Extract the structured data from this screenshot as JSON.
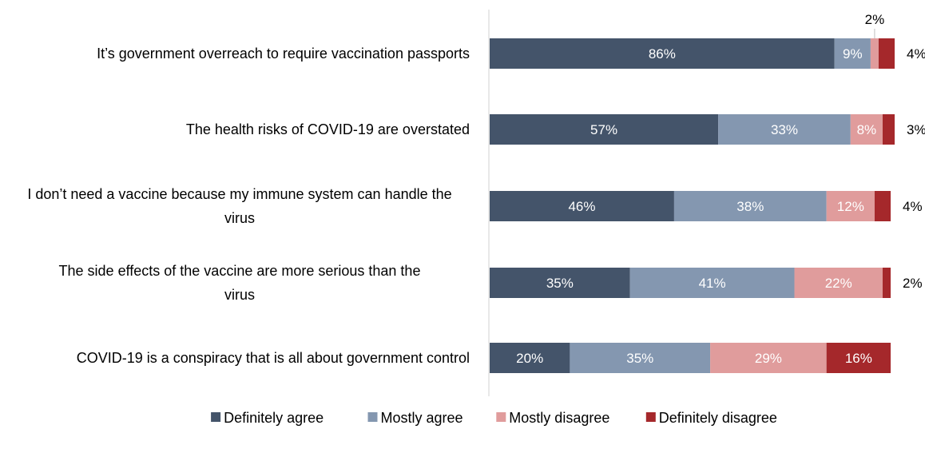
{
  "chart_data": {
    "type": "bar",
    "orientation": "horizontal",
    "stacked": true,
    "categories": [
      "It’s government overreach to require vaccination passports",
      "The health risks of COVID-19 are overstated",
      "I don’t need a vaccine because my immune system can handle the virus",
      "The side effects of the vaccine are more serious than the virus",
      "COVID-19 is a conspiracy that is all about government control"
    ],
    "series": [
      {
        "name": "Definitely agree",
        "color": "#44546A",
        "values": [
          86,
          57,
          46,
          35,
          20
        ]
      },
      {
        "name": "Mostly agree",
        "color": "#8497B0",
        "values": [
          9,
          33,
          38,
          41,
          35
        ]
      },
      {
        "name": "Mostly disagree",
        "color": "#E09C9C",
        "values": [
          2,
          8,
          12,
          22,
          29
        ]
      },
      {
        "name": "Definitely disagree",
        "color": "#A5282B",
        "values": [
          4,
          3,
          4,
          2,
          16
        ]
      }
    ],
    "value_suffix": "%",
    "legend_position": "bottom",
    "grid": false
  }
}
